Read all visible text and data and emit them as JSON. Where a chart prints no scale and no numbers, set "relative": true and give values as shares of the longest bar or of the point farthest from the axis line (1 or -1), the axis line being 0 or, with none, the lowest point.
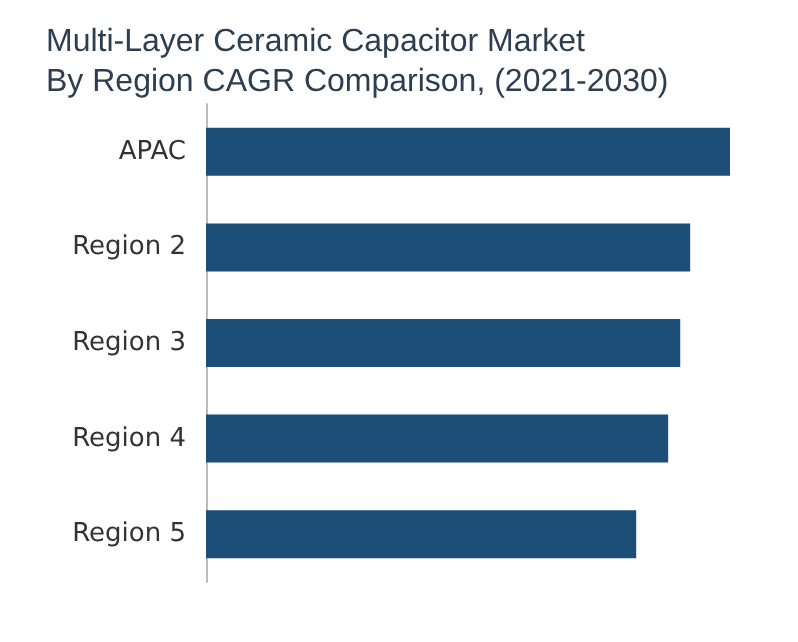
{
  "chart_data": {
    "type": "bar",
    "orientation": "horizontal",
    "relative": true,
    "title": "Multi-Layer Ceramic Capacitor Market\nBy Region CAGR Comparison, (2021-2030)",
    "categories": [
      "APAC",
      "Region 2",
      "Region 3",
      "Region 4",
      "Region 5"
    ],
    "series": [
      {
        "color": "#1d4e78",
        "values": [
          1,
          0.924,
          0.905,
          0.882,
          0.821
        ]
      }
    ]
  }
}
